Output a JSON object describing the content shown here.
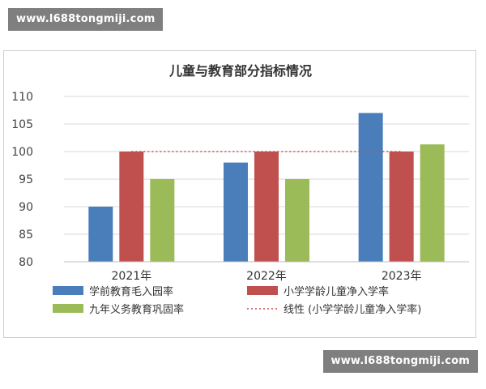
{
  "watermark": {
    "top": "www.l688tongmiji.com",
    "bottom": "www.l688tongmiji.com"
  },
  "colors": {
    "series_1": "#4a7ebb",
    "series_2": "#c0504d",
    "series_3": "#9bbb59",
    "line": "#c0504d",
    "axis": "#bfbfbf",
    "grid": "#d9d9d9"
  },
  "chart_data": {
    "type": "bar",
    "title": "儿童与教育部分指标情况",
    "categories": [
      "2021年",
      "2022年",
      "2023年"
    ],
    "series": [
      {
        "name": "学前教育毛入园率",
        "values": [
          90,
          98,
          107
        ]
      },
      {
        "name": "小学学龄儿童净入学率",
        "values": [
          100,
          100,
          100
        ]
      },
      {
        "name": "九年义务教育巩固率",
        "values": [
          95,
          95,
          101.3
        ]
      }
    ],
    "trendline": {
      "name": "线性 (小学学龄儿童净入学率)",
      "value": 100
    },
    "ylim": [
      80,
      110
    ],
    "yticks": [
      "80",
      "85",
      "90",
      "95",
      "100",
      "105",
      "110"
    ],
    "xlabel": "",
    "ylabel": "",
    "grid": true,
    "legend": "bottom"
  }
}
